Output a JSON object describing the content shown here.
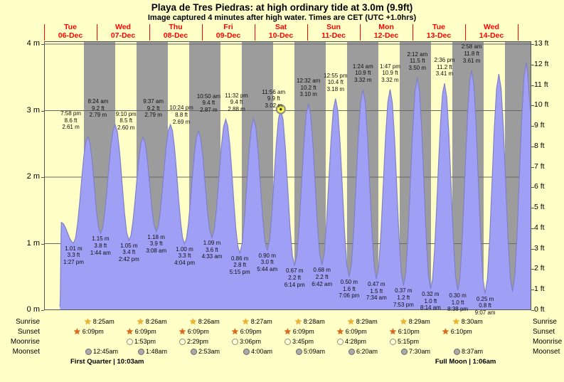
{
  "title": "Playa de Tres Piedras: at high  ordinary tide at 3.0m (9.9ft)",
  "subtitle": "Image captured 4 minutes after high water. Times are CET (UTC +1.0hrs)",
  "colors": {
    "background": "#ffffc8",
    "night_band": "#9c9c9c",
    "tide_fill": "#9f9ff5",
    "tide_stroke": "#8080c8",
    "day_label": "#ff0000",
    "marker_fill": "#ffff44"
  },
  "chart_data": {
    "type": "area",
    "title": "Playa de Tres Piedras tide heights, 06-Dec to 14-Dec",
    "xlabel": "date",
    "y_units": [
      "m",
      "ft"
    ],
    "ylim_m": [
      0,
      4
    ],
    "ylim_ft": [
      0,
      13
    ],
    "grid": "horizontal meter lines, day/night vertical bands",
    "legend_position": "none",
    "x_days": [
      {
        "dow": "Tue",
        "date": "06-Dec"
      },
      {
        "dow": "Wed",
        "date": "07-Dec"
      },
      {
        "dow": "Thu",
        "date": "08-Dec"
      },
      {
        "dow": "Fri",
        "date": "09-Dec"
      },
      {
        "dow": "Sat",
        "date": "10-Dec"
      },
      {
        "dow": "Sun",
        "date": "11-Dec"
      },
      {
        "dow": "Mon",
        "date": "12-Dec"
      },
      {
        "dow": "Tue",
        "date": "13-Dec"
      },
      {
        "dow": "Wed",
        "date": "14-Dec"
      }
    ],
    "y_left_ticks_m": [
      4,
      3,
      2,
      1,
      0
    ],
    "y_right_ticks_ft": [
      13,
      12,
      11,
      10,
      9,
      8,
      7,
      6,
      5,
      4,
      3,
      2,
      1,
      0
    ],
    "day_night": {
      "sunrise_frac": 0.351,
      "sunset_frac": 0.756
    },
    "tide_events": [
      {
        "type": "low",
        "time": "1:27 pm",
        "m": "1.01",
        "ft": "3.3",
        "t": 0.5604
      },
      {
        "type": "high",
        "time": "7:58 pm",
        "m": "2.61",
        "ft": "8.6",
        "t": 0.8319
      },
      {
        "type": "low",
        "time": "1:44 am",
        "m": "1.15",
        "ft": "3.8",
        "t": 1.0722
      },
      {
        "type": "high",
        "time": "8:24 am",
        "m": "2.79",
        "ft": "9.2",
        "t": 1.35
      },
      {
        "type": "low",
        "time": "2:42 pm",
        "m": "1.05",
        "ft": "3.4",
        "t": 1.6125
      },
      {
        "type": "high",
        "time": "9:10 pm",
        "m": "2.60",
        "ft": "8.5",
        "t": 1.8819
      },
      {
        "type": "low",
        "time": "3:08 am",
        "m": "1.18",
        "ft": "3.9",
        "t": 2.1306
      },
      {
        "type": "high",
        "time": "9:37 am",
        "m": "2.79",
        "ft": "9.2",
        "t": 2.4007
      },
      {
        "type": "low",
        "time": "4:04 pm",
        "m": "1.00",
        "ft": "3.3",
        "t": 2.6694
      },
      {
        "type": "high",
        "time": "10:24 pm",
        "m": "2.69",
        "ft": "8.8",
        "t": 2.9333
      },
      {
        "type": "low",
        "time": "4:33 am",
        "m": "1.09",
        "ft": "3.6",
        "t": 3.1896
      },
      {
        "type": "high",
        "time": "10:50 am",
        "m": "2.87",
        "ft": "9.4",
        "t": 3.4514
      },
      {
        "type": "low",
        "time": "5:15 pm",
        "m": "0.86",
        "ft": "2.8",
        "t": 3.7188
      },
      {
        "type": "high",
        "time": "11:32 pm",
        "m": "2.88",
        "ft": "9.4",
        "t": 3.9806
      },
      {
        "type": "low",
        "time": "5:44 am",
        "m": "0.90",
        "ft": "3.0",
        "t": 4.2389
      },
      {
        "type": "high",
        "time": "11:56 am",
        "m": "3.02",
        "ft": "9.9",
        "t": 4.4972,
        "marker": true
      },
      {
        "type": "low",
        "time": "6:14 pm",
        "m": "0.67",
        "ft": "2.2",
        "t": 4.7597
      },
      {
        "type": "high",
        "time": "12:32 am",
        "m": "3.10",
        "ft": "10.2",
        "t": 5.0222
      },
      {
        "type": "low",
        "time": "6:42 am",
        "m": "0.68",
        "ft": "2.2",
        "t": 5.2792
      },
      {
        "type": "high",
        "time": "12:55 pm",
        "m": "3.18",
        "ft": "10.4",
        "t": 5.5382
      },
      {
        "type": "low",
        "time": "7:06 pm",
        "m": "0.50",
        "ft": "1.6",
        "t": 5.7958
      },
      {
        "type": "high",
        "time": "1:24 am",
        "m": "3.32",
        "ft": "10.9",
        "t": 6.0583
      },
      {
        "type": "low",
        "time": "7:34 am",
        "m": "0.47",
        "ft": "1.5",
        "t": 6.3153
      },
      {
        "type": "high",
        "time": "1:47 pm",
        "m": "3.32",
        "ft": "10.9",
        "t": 6.5743
      },
      {
        "type": "low",
        "time": "7:53 pm",
        "m": "0.37",
        "ft": "1.2",
        "t": 6.8285
      },
      {
        "type": "high",
        "time": "2:12 am",
        "m": "3.50",
        "ft": "11.5",
        "t": 7.0917
      },
      {
        "type": "low",
        "time": "8:14 am",
        "m": "0.32",
        "ft": "1.0",
        "t": 7.3431
      },
      {
        "type": "high",
        "time": "2:36 pm",
        "m": "3.41",
        "ft": "11.2",
        "t": 7.6083
      },
      {
        "type": "low",
        "time": "8:38 pm",
        "m": "0.30",
        "ft": "1.0",
        "t": 7.8597
      },
      {
        "type": "high",
        "time": "2:58 am",
        "m": "3.61",
        "ft": "11.8",
        "t": 8.1236
      },
      {
        "type": "low",
        "time": "9:07 am",
        "m": "0.25",
        "ft": "0.8",
        "t": 8.3799
      }
    ],
    "curve_edges": {
      "head": [
        {
          "t": 0.302,
          "h": 0.05
        },
        {
          "t": 0.328,
          "h": 1.32
        }
      ],
      "tail": [
        {
          "t": 8.64,
          "h": 3.55
        },
        {
          "t": 8.9,
          "h": 0.28
        },
        {
          "t": 9.16,
          "h": 3.72
        },
        {
          "t": 9.257,
          "h": 2.95
        }
      ]
    },
    "current_marker_event": "11:56 am 3.02 m"
  },
  "astro": {
    "rows": [
      {
        "name": "sunrise",
        "label": "Sunrise",
        "icon": "sunrise-star",
        "start_day": 1,
        "times": [
          "8:25am",
          "8:26am",
          "8:26am",
          "8:27am",
          "8:28am",
          "8:29am",
          "8:29am",
          "8:30am"
        ]
      },
      {
        "name": "sunset",
        "label": "Sunset",
        "icon": "sunset-star",
        "start_day": 0,
        "times": [
          "6:09pm",
          "6:09pm",
          "6:09pm",
          "6:09pm",
          "6:09pm",
          "6:09pm",
          "6:10pm",
          "6:10pm"
        ]
      },
      {
        "name": "moonrise",
        "label": "Moonrise",
        "icon": "moonrise-circle",
        "start_day": 1,
        "times": [
          "1:53pm",
          "2:29pm",
          "3:06pm",
          "3:45pm",
          "4:28pm",
          "5:15pm"
        ]
      },
      {
        "name": "moonset",
        "label": "Moonset",
        "icon": "moonset-circle",
        "start_day": 1,
        "times": [
          "12:45am",
          "1:48am",
          "2:53am",
          "4:00am",
          "5:09am",
          "6:20am",
          "7:30am",
          "8:37am"
        ]
      }
    ],
    "phases": [
      {
        "text": "First Quarter | 10:03am",
        "day": 0.5
      },
      {
        "text": "Full Moon | 1:06am",
        "day": 7.43
      }
    ]
  }
}
